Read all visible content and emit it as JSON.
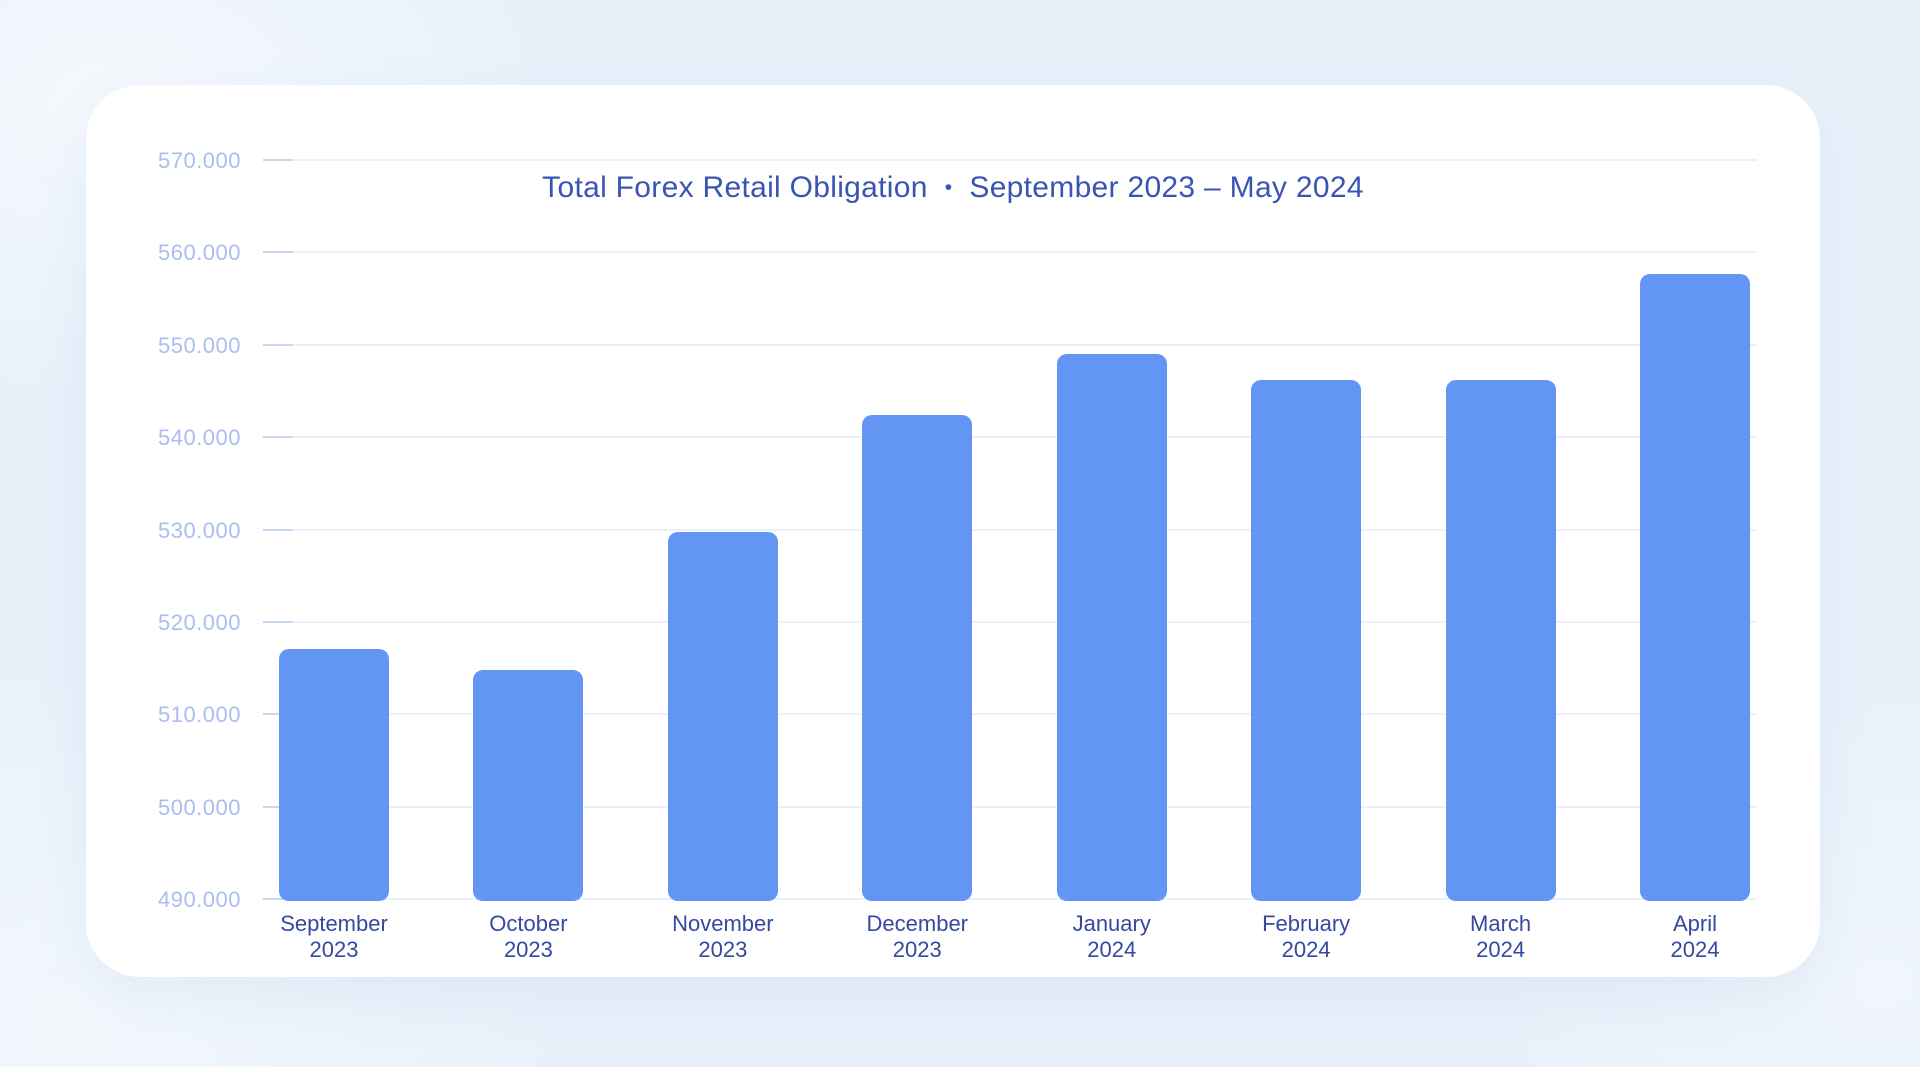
{
  "page": {
    "background_color": "#e8f1fa"
  },
  "card": {
    "background_color": "#ffffff"
  },
  "title": {
    "main": "Total Forex Retail Obligation",
    "separator": "•",
    "range": "September 2023 – May 2024"
  },
  "chart_data": {
    "type": "bar",
    "title": "Total Forex Retail Obligation • September 2023 – May 2024",
    "categories": [
      "September 2023",
      "October 2023",
      "November 2023",
      "December 2023",
      "January 2024",
      "February 2024",
      "March 2024",
      "April 2024"
    ],
    "category_lines": [
      [
        "September",
        "2023"
      ],
      [
        "October",
        "2023"
      ],
      [
        "November",
        "2023"
      ],
      [
        "December",
        "2023"
      ],
      [
        "January",
        "2024"
      ],
      [
        "February",
        "2024"
      ],
      [
        "March",
        "2024"
      ],
      [
        "April",
        "2024"
      ]
    ],
    "values": [
      517.0,
      514.7,
      529.6,
      542.3,
      548.9,
      546.1,
      546.1,
      557.5
    ],
    "xlabel": "",
    "ylabel": "",
    "ylim": [
      490,
      570
    ],
    "ytick_step": 10,
    "ytick_labels": [
      "570.000",
      "560.000",
      "550.000",
      "540.000",
      "530.000",
      "520.000",
      "510.000",
      "500.000",
      "490.000"
    ],
    "grid": true,
    "legend": "none",
    "bar_color": "#6295f4",
    "gridline_color": "#e9f1fb",
    "tick_color": "#c9d6f2",
    "ylabel_color": "#abbdf0",
    "xlabel_color": "#36489f",
    "title_color": "#3a54b4"
  }
}
